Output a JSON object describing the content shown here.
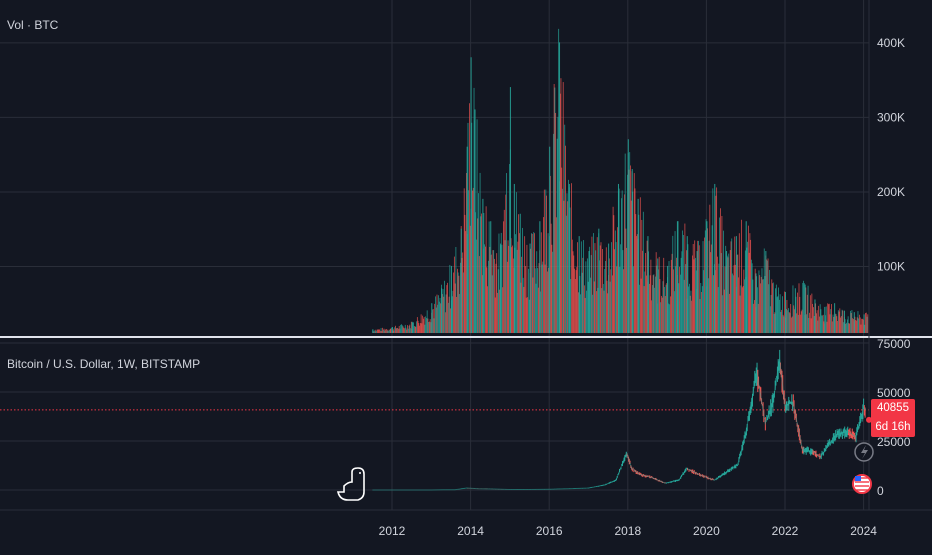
{
  "colors": {
    "background": "#131722",
    "grid": "#2a2e39",
    "up": "#26a69a",
    "down": "#ef5350",
    "axis_text": "#d1d4dc",
    "price_line": "#f23645",
    "separator": "#e0e3eb"
  },
  "volume_pane": {
    "legend": "Vol · BTC",
    "y_ticks": [
      "400K",
      "300K",
      "200K",
      "100K"
    ]
  },
  "price_pane": {
    "legend": "Bitcoin / U.S. Dollar, 1W, BITSTAMP",
    "y_ticks": [
      "75000",
      "50000",
      "25000",
      "0"
    ],
    "last_price": "40855",
    "countdown": "6d 16h",
    "icons": [
      "dinosaur-icon",
      "lightning-icon",
      "us-flag-icon"
    ]
  },
  "x_ticks": [
    "2012",
    "2014",
    "2016",
    "2018",
    "2020",
    "2022",
    "2024"
  ],
  "chart_data": [
    {
      "type": "bar",
      "title": "",
      "series_label": "Vol · BTC",
      "x": [
        2011.5,
        2012.0,
        2012.5,
        2013.0,
        2013.25,
        2013.5,
        2013.75,
        2013.9,
        2014.0,
        2014.1,
        2014.3,
        2014.5,
        2014.75,
        2015.0,
        2015.1,
        2015.25,
        2015.5,
        2015.75,
        2016.0,
        2016.25,
        2016.5,
        2016.75,
        2017.0,
        2017.25,
        2017.5,
        2017.75,
        2018.0,
        2018.1,
        2018.25,
        2018.5,
        2018.75,
        2019.0,
        2019.25,
        2019.5,
        2019.75,
        2020.0,
        2020.2,
        2020.5,
        2020.75,
        2021.0,
        2021.25,
        2021.5,
        2021.75,
        2022.0,
        2022.25,
        2022.5,
        2022.75,
        2023.0,
        2023.25,
        2023.5,
        2023.75,
        2024.0
      ],
      "y": [
        5000,
        8000,
        15000,
        40000,
        60000,
        90000,
        140000,
        250000,
        370000,
        300000,
        180000,
        150000,
        120000,
        330000,
        200000,
        160000,
        120000,
        150000,
        250000,
        390000,
        200000,
        130000,
        110000,
        140000,
        120000,
        200000,
        260000,
        220000,
        180000,
        130000,
        100000,
        90000,
        150000,
        130000,
        110000,
        150000,
        200000,
        110000,
        130000,
        150000,
        80000,
        110000,
        60000,
        55000,
        60000,
        65000,
        45000,
        35000,
        40000,
        30000,
        28000,
        25000
      ],
      "ylim": [
        0,
        420000
      ]
    },
    {
      "type": "line",
      "title": "Bitcoin / U.S. Dollar, 1W, BITSTAMP",
      "x": [
        2011.5,
        2012.0,
        2012.5,
        2013.0,
        2013.3,
        2013.6,
        2013.9,
        2014.2,
        2014.6,
        2015.0,
        2015.5,
        2016.0,
        2016.5,
        2017.0,
        2017.4,
        2017.7,
        2017.97,
        2018.1,
        2018.3,
        2018.6,
        2018.95,
        2019.3,
        2019.5,
        2019.8,
        2020.2,
        2020.5,
        2020.8,
        2021.0,
        2021.28,
        2021.5,
        2021.7,
        2021.86,
        2022.0,
        2022.2,
        2022.45,
        2022.7,
        2022.9,
        2023.1,
        2023.3,
        2023.6,
        2023.8,
        2024.0,
        2024.05
      ],
      "y": [
        10,
        5,
        8,
        15,
        100,
        100,
        1000,
        600,
        500,
        250,
        250,
        430,
        650,
        1000,
        2500,
        5000,
        19000,
        11000,
        8000,
        6500,
        3500,
        5000,
        11000,
        8000,
        5000,
        9000,
        13000,
        29000,
        60000,
        34000,
        45000,
        67000,
        43000,
        45000,
        20000,
        20000,
        16500,
        23000,
        28000,
        30000,
        27000,
        42000,
        40855
      ],
      "ylim": [
        0,
        75000
      ]
    }
  ]
}
